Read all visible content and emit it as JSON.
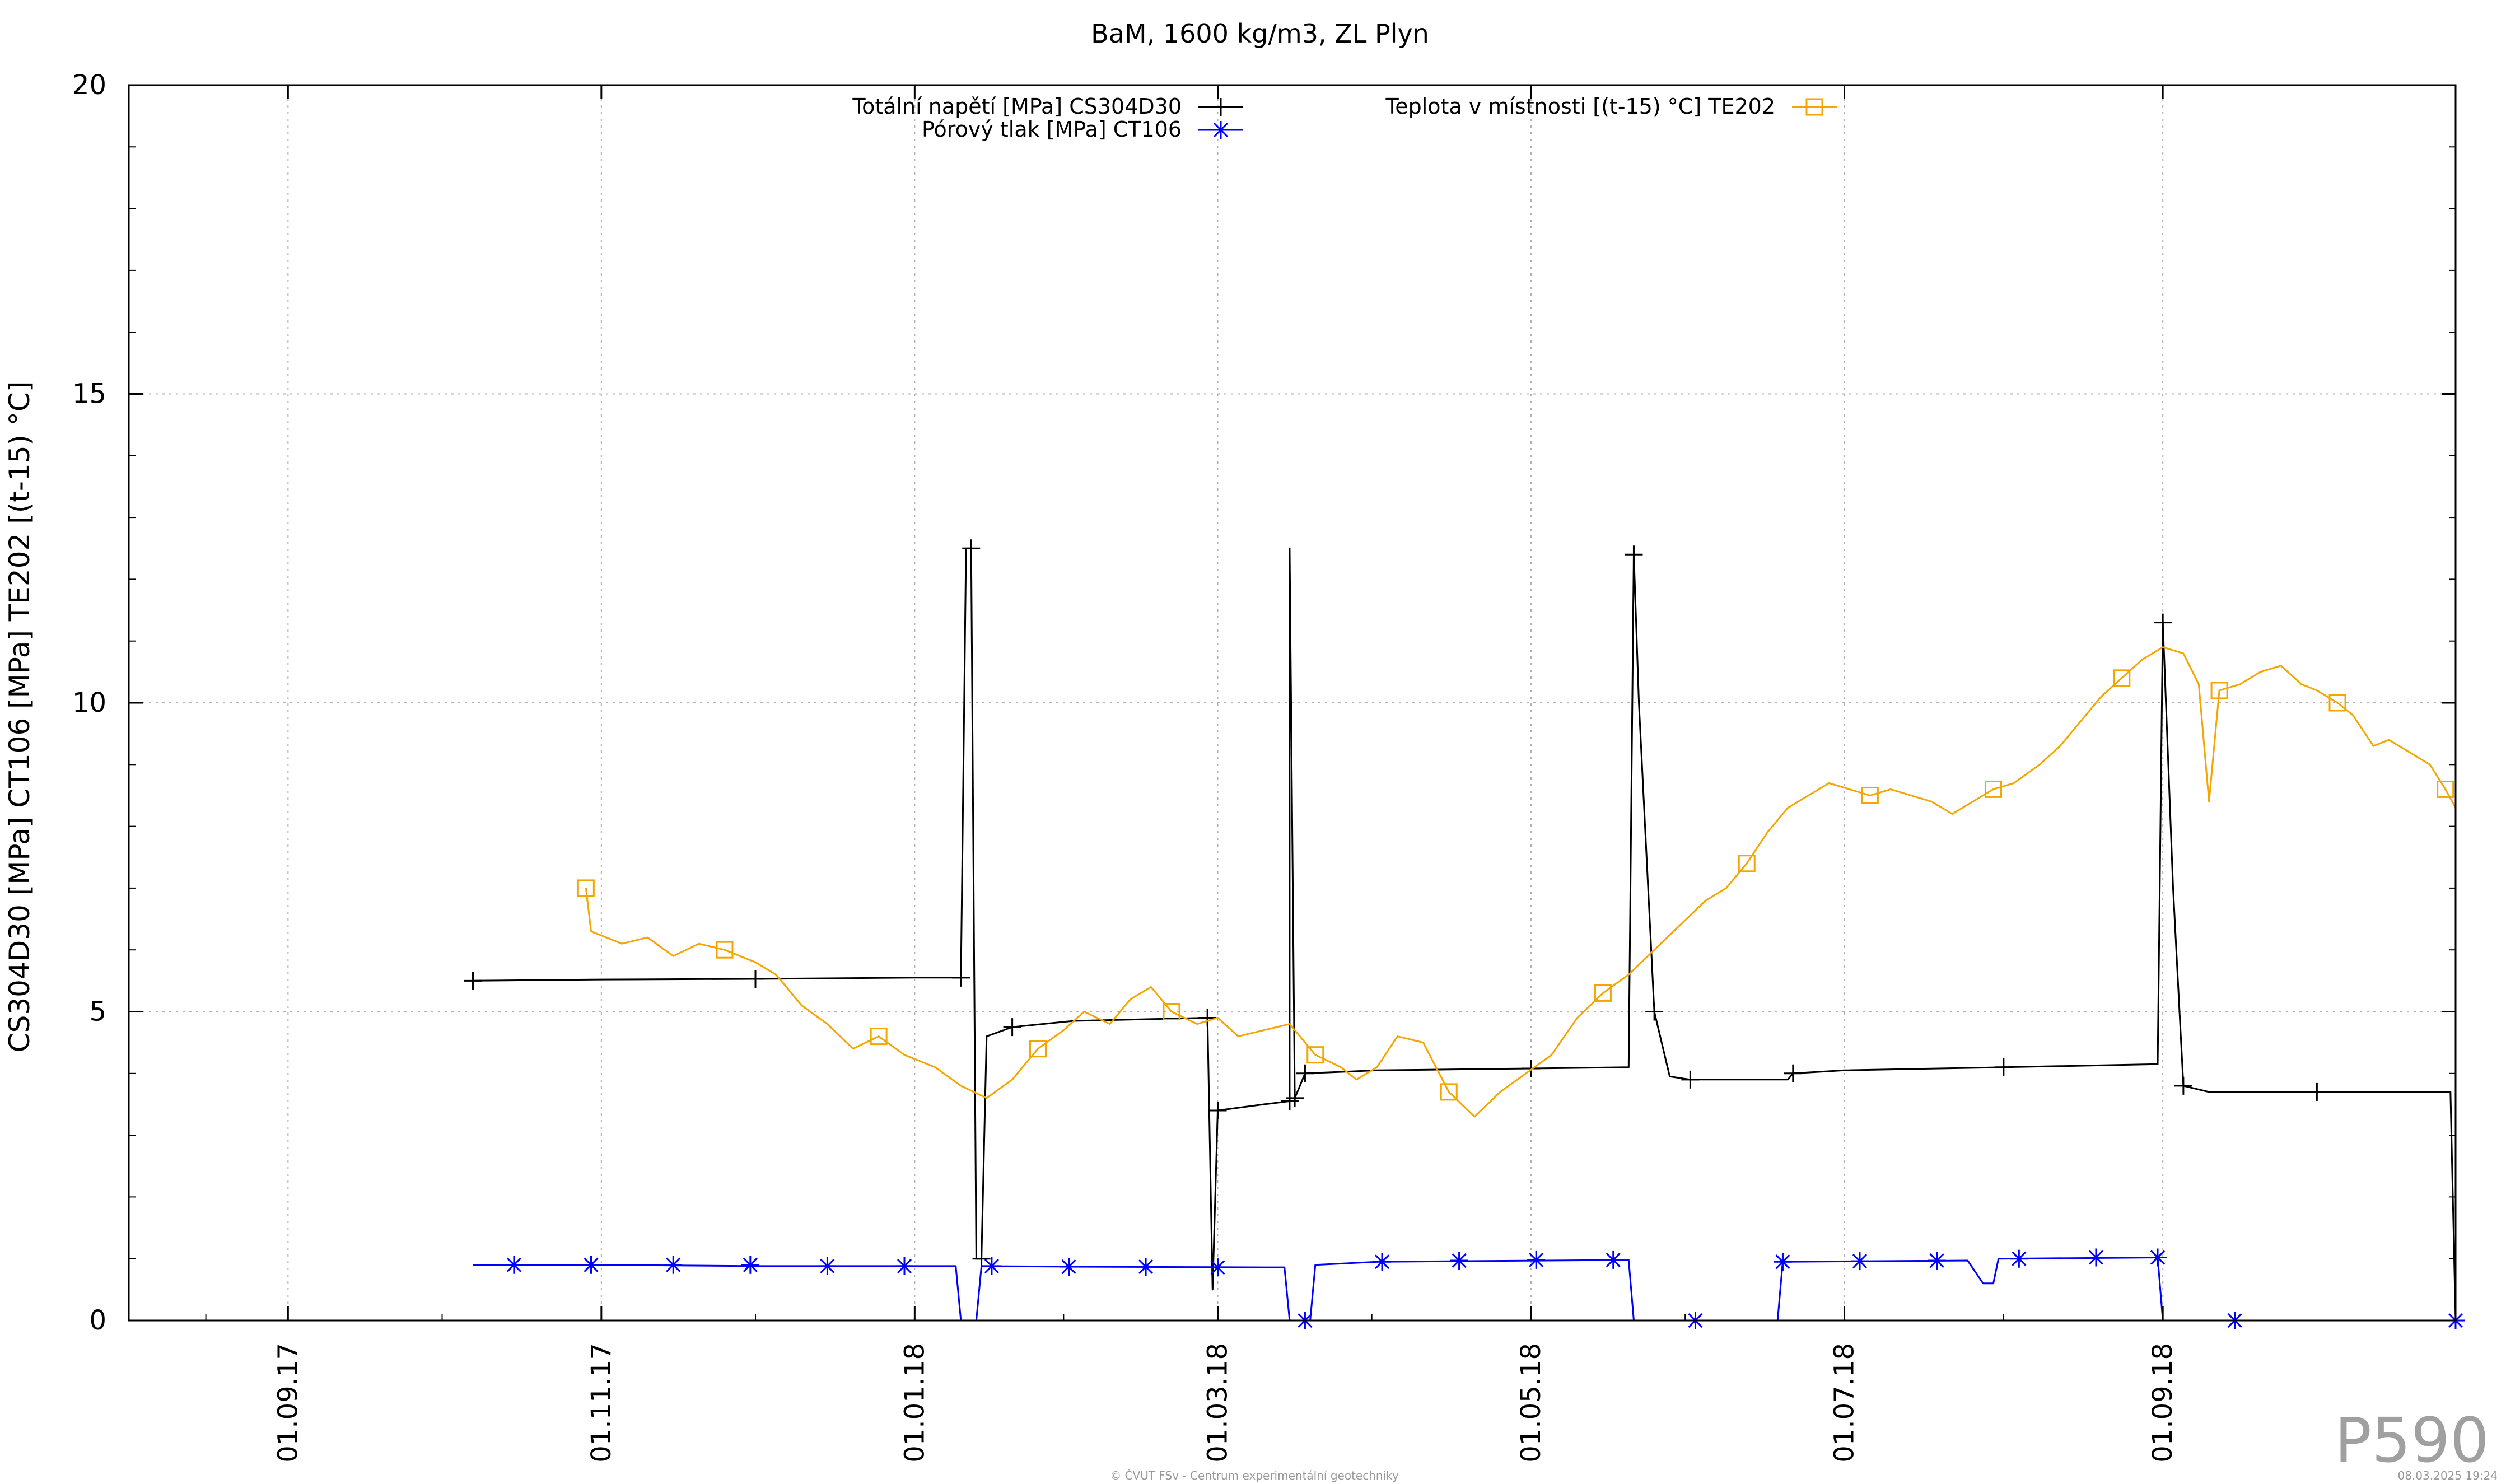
{
  "chart_data": {
    "type": "line",
    "title": "BaM, 1600 kg/m3, ZL Plyn",
    "ylabel": "CS304D30 [MPa] CT106 [MPa] TE202 [(t-15) °C]",
    "xlabel": "",
    "ylim": [
      0,
      20
    ],
    "yticks": [
      "0",
      "5",
      "10",
      "15",
      "20"
    ],
    "xlim": [
      "2017-08-01",
      "2018-10-28"
    ],
    "xticks": [
      {
        "date": "2017-09-01",
        "label": "01.09.17"
      },
      {
        "date": "2017-11-01",
        "label": "01.11.17"
      },
      {
        "date": "2018-01-01",
        "label": "01.01.18"
      },
      {
        "date": "2018-03-01",
        "label": "01.03.18"
      },
      {
        "date": "2018-05-01",
        "label": "01.05.18"
      },
      {
        "date": "2018-07-01",
        "label": "01.07.18"
      },
      {
        "date": "2018-09-01",
        "label": "01.09.18"
      }
    ],
    "grid": true,
    "legend_position": "top",
    "series": [
      {
        "name": "Totální napětí [MPa] CS304D30",
        "color": "#000000",
        "marker": "plus",
        "points": [
          [
            "2017-10-07",
            5.5
          ],
          [
            "2017-11-01",
            5.52
          ],
          [
            "2017-12-01",
            5.53
          ],
          [
            "2018-01-01",
            5.55
          ],
          [
            "2018-01-10",
            5.55
          ],
          [
            "2018-01-11",
            12.5
          ],
          [
            "2018-01-12",
            12.5
          ],
          [
            "2018-01-13",
            1.0
          ],
          [
            "2018-01-14",
            1.0
          ],
          [
            "2018-01-15",
            4.6
          ],
          [
            "2018-01-20",
            4.75
          ],
          [
            "2018-02-01",
            4.85
          ],
          [
            "2018-02-27",
            4.9
          ],
          [
            "2018-02-28",
            0.5
          ],
          [
            "2018-03-01",
            3.4
          ],
          [
            "2018-03-10",
            3.5
          ],
          [
            "2018-03-15",
            3.55
          ],
          [
            "2018-03-15",
            12.5
          ],
          [
            "2018-03-16",
            3.6
          ],
          [
            "2018-03-17",
            3.8
          ],
          [
            "2018-03-18",
            4.0
          ],
          [
            "2018-04-01",
            4.05
          ],
          [
            "2018-05-01",
            4.08
          ],
          [
            "2018-05-20",
            4.1
          ],
          [
            "2018-05-21",
            12.4
          ],
          [
            "2018-05-22",
            10.0
          ],
          [
            "2018-05-25",
            5.0
          ],
          [
            "2018-05-28",
            3.95
          ],
          [
            "2018-06-01",
            3.9
          ],
          [
            "2018-06-20",
            3.9
          ],
          [
            "2018-06-21",
            4.0
          ],
          [
            "2018-07-01",
            4.05
          ],
          [
            "2018-08-01",
            4.1
          ],
          [
            "2018-08-31",
            4.15
          ],
          [
            "2018-09-01",
            11.3
          ],
          [
            "2018-09-03",
            7.0
          ],
          [
            "2018-09-05",
            3.8
          ],
          [
            "2018-09-10",
            3.7
          ],
          [
            "2018-10-01",
            3.7
          ],
          [
            "2018-10-27",
            3.7
          ],
          [
            "2018-10-28",
            0.0
          ]
        ]
      },
      {
        "name": "Pórový tlak [MPa] CT106",
        "color": "#0000ff",
        "marker": "star",
        "points": [
          [
            "2017-10-07",
            0.9
          ],
          [
            "2017-11-01",
            0.9
          ],
          [
            "2017-12-01",
            0.88
          ],
          [
            "2018-01-09",
            0.88
          ],
          [
            "2018-01-10",
            0.0
          ],
          [
            "2018-01-13",
            0.0
          ],
          [
            "2018-01-14",
            0.88
          ],
          [
            "2018-02-01",
            0.87
          ],
          [
            "2018-03-10",
            0.86
          ],
          [
            "2018-03-14",
            0.86
          ],
          [
            "2018-03-15",
            0.0
          ],
          [
            "2018-03-19",
            0.0
          ],
          [
            "2018-03-20",
            0.9
          ],
          [
            "2018-04-01",
            0.95
          ],
          [
            "2018-05-20",
            0.98
          ],
          [
            "2018-05-21",
            0.0
          ],
          [
            "2018-06-18",
            0.0
          ],
          [
            "2018-06-19",
            0.95
          ],
          [
            "2018-07-25",
            0.97
          ],
          [
            "2018-07-28",
            0.6
          ],
          [
            "2018-07-30",
            0.6
          ],
          [
            "2018-07-31",
            1.0
          ],
          [
            "2018-08-31",
            1.02
          ],
          [
            "2018-09-01",
            0.0
          ],
          [
            "2018-10-28",
            0.0
          ]
        ],
        "markers": [
          [
            "2017-10-15",
            0.9
          ],
          [
            "2017-10-30",
            0.9
          ],
          [
            "2017-11-15",
            0.9
          ],
          [
            "2017-11-30",
            0.9
          ],
          [
            "2017-12-15",
            0.88
          ],
          [
            "2017-12-30",
            0.88
          ],
          [
            "2018-01-16",
            0.88
          ],
          [
            "2018-01-31",
            0.87
          ],
          [
            "2018-02-15",
            0.87
          ],
          [
            "2018-03-01",
            0.86
          ],
          [
            "2018-03-18",
            0.0
          ],
          [
            "2018-04-02",
            0.95
          ],
          [
            "2018-04-17",
            0.97
          ],
          [
            "2018-05-02",
            0.98
          ],
          [
            "2018-05-17",
            0.98
          ],
          [
            "2018-06-02",
            0.0
          ],
          [
            "2018-06-19",
            0.95
          ],
          [
            "2018-07-04",
            0.96
          ],
          [
            "2018-07-19",
            0.97
          ],
          [
            "2018-08-04",
            1.0
          ],
          [
            "2018-08-19",
            1.02
          ],
          [
            "2018-08-31",
            1.02
          ],
          [
            "2018-09-15",
            0.0
          ],
          [
            "2018-10-28",
            0.0
          ]
        ]
      },
      {
        "name": "Teplota v místnosti [(t-15) °C] TE202",
        "color": "#f5a500",
        "marker": "square",
        "points": [
          [
            "2017-10-29",
            7.0
          ],
          [
            "2017-10-30",
            6.3
          ],
          [
            "2017-11-05",
            6.1
          ],
          [
            "2017-11-10",
            6.2
          ],
          [
            "2017-11-15",
            5.9
          ],
          [
            "2017-11-20",
            6.1
          ],
          [
            "2017-11-25",
            6.0
          ],
          [
            "2017-12-01",
            5.8
          ],
          [
            "2017-12-05",
            5.6
          ],
          [
            "2017-12-10",
            5.1
          ],
          [
            "2017-12-15",
            4.8
          ],
          [
            "2017-12-20",
            4.4
          ],
          [
            "2017-12-25",
            4.6
          ],
          [
            "2017-12-30",
            4.3
          ],
          [
            "2018-01-05",
            4.1
          ],
          [
            "2018-01-10",
            3.8
          ],
          [
            "2018-01-15",
            3.6
          ],
          [
            "2018-01-20",
            3.9
          ],
          [
            "2018-01-25",
            4.4
          ],
          [
            "2018-01-30",
            4.7
          ],
          [
            "2018-02-03",
            5.0
          ],
          [
            "2018-02-08",
            4.8
          ],
          [
            "2018-02-12",
            5.2
          ],
          [
            "2018-02-16",
            5.4
          ],
          [
            "2018-02-20",
            5.0
          ],
          [
            "2018-02-25",
            4.8
          ],
          [
            "2018-03-01",
            4.9
          ],
          [
            "2018-03-05",
            4.6
          ],
          [
            "2018-03-10",
            4.7
          ],
          [
            "2018-03-15",
            4.8
          ],
          [
            "2018-03-20",
            4.3
          ],
          [
            "2018-03-25",
            4.1
          ],
          [
            "2018-03-28",
            3.9
          ],
          [
            "2018-04-01",
            4.1
          ],
          [
            "2018-04-05",
            4.6
          ],
          [
            "2018-04-10",
            4.5
          ],
          [
            "2018-04-15",
            3.7
          ],
          [
            "2018-04-20",
            3.3
          ],
          [
            "2018-04-25",
            3.7
          ],
          [
            "2018-04-30",
            4.0
          ],
          [
            "2018-05-05",
            4.3
          ],
          [
            "2018-05-10",
            4.9
          ],
          [
            "2018-05-15",
            5.3
          ],
          [
            "2018-05-20",
            5.6
          ],
          [
            "2018-05-25",
            6.0
          ],
          [
            "2018-05-30",
            6.4
          ],
          [
            "2018-06-04",
            6.8
          ],
          [
            "2018-06-08",
            7.0
          ],
          [
            "2018-06-12",
            7.4
          ],
          [
            "2018-06-16",
            7.9
          ],
          [
            "2018-06-20",
            8.3
          ],
          [
            "2018-06-24",
            8.5
          ],
          [
            "2018-06-28",
            8.7
          ],
          [
            "2018-07-02",
            8.6
          ],
          [
            "2018-07-06",
            8.5
          ],
          [
            "2018-07-10",
            8.6
          ],
          [
            "2018-07-14",
            8.5
          ],
          [
            "2018-07-18",
            8.4
          ],
          [
            "2018-07-22",
            8.2
          ],
          [
            "2018-07-26",
            8.4
          ],
          [
            "2018-07-30",
            8.6
          ],
          [
            "2018-08-03",
            8.7
          ],
          [
            "2018-08-08",
            9.0
          ],
          [
            "2018-08-12",
            9.3
          ],
          [
            "2018-08-16",
            9.7
          ],
          [
            "2018-08-20",
            10.1
          ],
          [
            "2018-08-24",
            10.4
          ],
          [
            "2018-08-28",
            10.7
          ],
          [
            "2018-09-01",
            10.9
          ],
          [
            "2018-09-05",
            10.8
          ],
          [
            "2018-09-08",
            10.3
          ],
          [
            "2018-09-10",
            8.4
          ],
          [
            "2018-09-12",
            10.2
          ],
          [
            "2018-09-16",
            10.3
          ],
          [
            "2018-09-20",
            10.5
          ],
          [
            "2018-09-24",
            10.6
          ],
          [
            "2018-09-28",
            10.3
          ],
          [
            "2018-10-01",
            10.2
          ],
          [
            "2018-10-05",
            10.0
          ],
          [
            "2018-10-08",
            9.8
          ],
          [
            "2018-10-12",
            9.3
          ],
          [
            "2018-10-15",
            9.4
          ],
          [
            "2018-10-19",
            9.2
          ],
          [
            "2018-10-23",
            9.0
          ],
          [
            "2018-10-26",
            8.6
          ],
          [
            "2018-10-28",
            8.3
          ],
          [
            "2018-10-28",
            7.5
          ]
        ]
      }
    ]
  },
  "badge": "P590",
  "footer_center": "© ČVUT FSv - Centrum experimentální geotechniky",
  "footer_right": "08.03.2025 19:24"
}
